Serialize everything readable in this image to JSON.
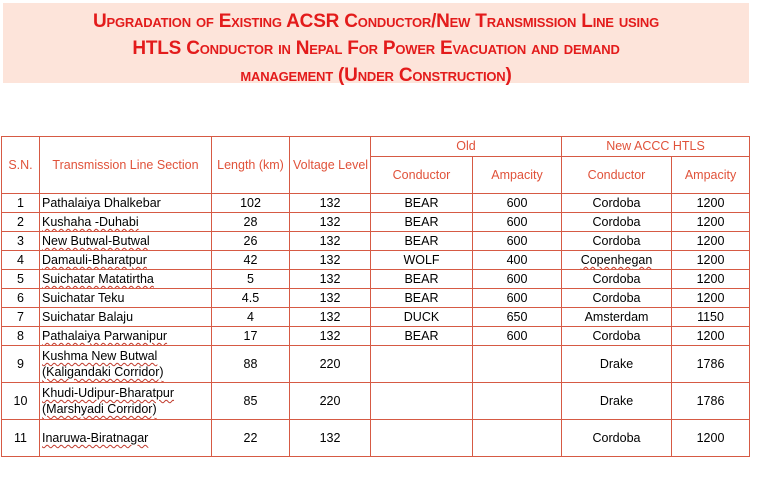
{
  "title": {
    "line1": "Upgradation of Existing ACSR Conductor/New Transmission Line using",
    "line2": "HTLS Conductor in Nepal For Power  Evacuation and demand",
    "line3": "management (Under Construction)"
  },
  "colors": {
    "title_text": "#e31b1b",
    "title_background": "#fde4da",
    "header_text": "#e0523a",
    "table_border": "#d65a44"
  },
  "table": {
    "headers": {
      "sn": "S.N.",
      "section": "Transmission Line Section",
      "length": "Length (km)",
      "voltage": "Voltage Level (kV)",
      "old_group": "Old",
      "new_group": "New ACCC HTLS",
      "old_conductor": "Conductor",
      "old_ampacity": "Ampacity",
      "new_conductor": "Conductor",
      "new_ampacity": "Ampacity"
    },
    "rows": [
      {
        "sn": "1",
        "line1": "Pathalaiya Dhalkebar",
        "line2": "",
        "length": "102",
        "voltage": "132",
        "old_conductor": "BEAR",
        "old_ampacity": "600",
        "new_conductor": "Cordoba",
        "new_ampacity": "1200"
      },
      {
        "sn": "2",
        "line1": "Kushaha -Duhabi",
        "line2": "",
        "length": "28",
        "voltage": "132",
        "old_conductor": "BEAR",
        "old_ampacity": "600",
        "new_conductor": "Cordoba",
        "new_ampacity": "1200"
      },
      {
        "sn": "3",
        "line1": "New Butwal-Butwal",
        "line2": "",
        "length": "26",
        "voltage": "132",
        "old_conductor": "BEAR",
        "old_ampacity": "600",
        "new_conductor": "Cordoba",
        "new_ampacity": "1200"
      },
      {
        "sn": "4",
        "line1": "Damauli-Bharatpur",
        "line2": "",
        "length": "42",
        "voltage": "132",
        "old_conductor": "WOLF",
        "old_ampacity": "400",
        "new_conductor": "Copenhegan",
        "new_ampacity": "1200"
      },
      {
        "sn": "5",
        "line1": "Suichatar Matatirtha",
        "line2": "",
        "length": "5",
        "voltage": "132",
        "old_conductor": "BEAR",
        "old_ampacity": "600",
        "new_conductor": "Cordoba",
        "new_ampacity": "1200"
      },
      {
        "sn": "6",
        "line1": "Suichatar Teku",
        "line2": "",
        "length": "4.5",
        "voltage": "132",
        "old_conductor": "BEAR",
        "old_ampacity": "600",
        "new_conductor": "Cordoba",
        "new_ampacity": "1200"
      },
      {
        "sn": "7",
        "line1": "Suichatar Balaju",
        "line2": "",
        "length": "4",
        "voltage": "132",
        "old_conductor": "DUCK",
        "old_ampacity": "650",
        "new_conductor": "Amsterdam",
        "new_ampacity": "1150"
      },
      {
        "sn": "8",
        "line1": "Pathalaiya Parwanipur",
        "line2": "",
        "length": "17",
        "voltage": "132",
        "old_conductor": "BEAR",
        "old_ampacity": "600",
        "new_conductor": "Cordoba",
        "new_ampacity": "1200"
      },
      {
        "sn": "9",
        "line1": "Kushma New Butwal",
        "line2": "(Kaligandaki Corridor)",
        "length": "88",
        "voltage": "220",
        "old_conductor": "",
        "old_ampacity": "",
        "new_conductor": "Drake",
        "new_ampacity": "1786"
      },
      {
        "sn": "10",
        "line1": "Khudi-Udipur-Bharatpur",
        "line2": "(Marshyadi Corridor)",
        "length": "85",
        "voltage": "220",
        "old_conductor": "",
        "old_ampacity": "",
        "new_conductor": "Drake",
        "new_ampacity": "1786"
      },
      {
        "sn": "11",
        "line1": "Inaruwa-Biratnagar",
        "line2": "",
        "length": "22",
        "voltage": "132",
        "old_conductor": "",
        "old_ampacity": "",
        "new_conductor": "Cordoba",
        "new_ampacity": "1200"
      }
    ]
  }
}
